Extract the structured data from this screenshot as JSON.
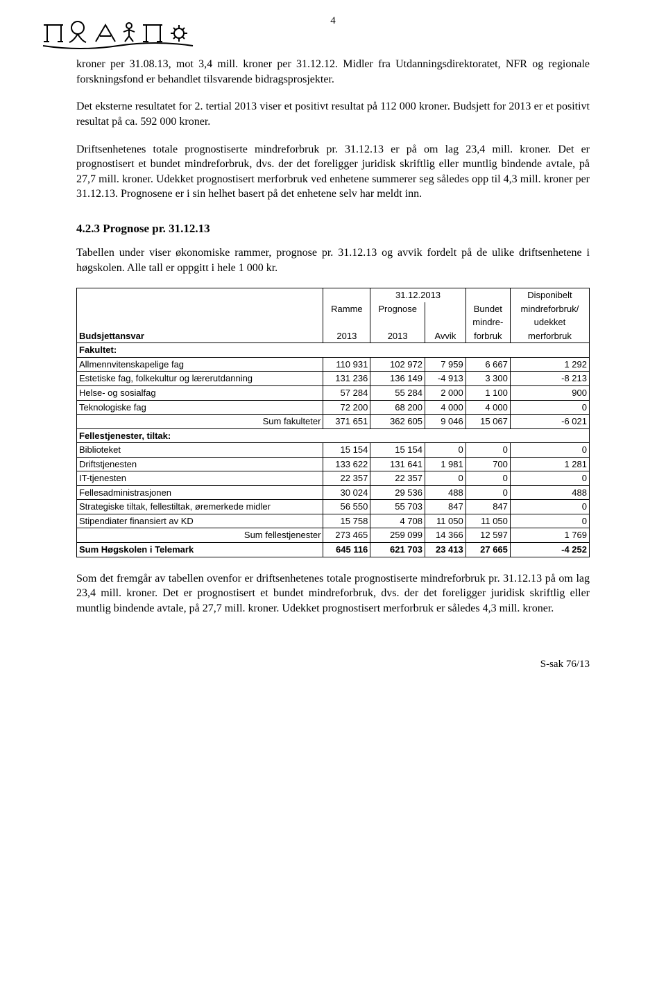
{
  "page_number": "4",
  "paragraphs": {
    "p1": "kroner per 31.08.13, mot 3,4 mill. kroner per 31.12.12. Midler fra Utdanningsdirektoratet, NFR og regionale forskningsfond er behandlet tilsvarende bidragsprosjekter.",
    "p2": "Det eksterne resultatet for 2. tertial 2013 viser et positivt resultat på 112 000 kroner. Budsjett for 2013 er et positivt resultat på ca. 592 000 kroner.",
    "p3": "Driftsenhetenes totale prognostiserte mindreforbruk pr. 31.12.13 er på om lag 23,4 mill. kroner. Det er prognostisert et bundet mindreforbruk, dvs. der det foreligger juridisk skriftlig eller muntlig bindende avtale, på 27,7 mill. kroner. Udekket prognostisert merforbruk ved enhetene summerer seg således opp til 4,3 mill. kroner per 31.12.13. Prognosene er i sin helhet basert på det enhetene selv har meldt inn."
  },
  "section_heading": "4.2.3   Prognose pr. 31.12.13",
  "section_intro": "Tabellen under viser økonomiske rammer, prognose pr. 31.12.13 og avvik fordelt på de ulike driftsenhetene i høgskolen. Alle tall er oppgitt i hele 1 000 kr.",
  "table": {
    "header": {
      "col1": "Budsjettansvar",
      "col2_l1": "Ramme",
      "col2_l2": "2013",
      "col_date": "31.12.2013",
      "col3_l1": "Prognose",
      "col3_l2": "2013",
      "col4": "Avvik",
      "col5_l1": "Bundet",
      "col5_l2": "mindre-",
      "col5_l3": "forbruk",
      "col6_l1": "Disponibelt",
      "col6_l2": "mindreforbruk/",
      "col6_l3": "udekket",
      "col6_l4": "merforbruk"
    },
    "section1_label": "Fakultet:",
    "rows1": [
      {
        "label": "Allmennvitenskapelige fag",
        "c": [
          "110 931",
          "102 972",
          "7 959",
          "6 667",
          "1 292"
        ]
      },
      {
        "label": "Estetiske fag, folkekultur og lærerutdanning",
        "c": [
          "131 236",
          "136 149",
          "-4 913",
          "3 300",
          "-8 213"
        ]
      },
      {
        "label": "Helse- og sosialfag",
        "c": [
          "57 284",
          "55 284",
          "2 000",
          "1 100",
          "900"
        ]
      },
      {
        "label": "Teknologiske fag",
        "c": [
          "72 200",
          "68 200",
          "4 000",
          "4 000",
          "0"
        ]
      }
    ],
    "sum1": {
      "label": "Sum fakulteter",
      "c": [
        "371 651",
        "362 605",
        "9 046",
        "15 067",
        "-6 021"
      ]
    },
    "section2_label": "Fellestjenester, tiltak:",
    "rows2": [
      {
        "label": "Biblioteket",
        "c": [
          "15 154",
          "15 154",
          "0",
          "0",
          "0"
        ]
      },
      {
        "label": "Driftstjenesten",
        "c": [
          "133 622",
          "131 641",
          "1 981",
          "700",
          "1 281"
        ]
      },
      {
        "label": "IT-tjenesten",
        "c": [
          "22 357",
          "22 357",
          "0",
          "0",
          "0"
        ]
      },
      {
        "label": "Fellesadministrasjonen",
        "c": [
          "30 024",
          "29 536",
          "488",
          "0",
          "488"
        ]
      },
      {
        "label": "Strategiske tiltak, fellestiltak, øremerkede midler",
        "c": [
          "56 550",
          "55 703",
          "847",
          "847",
          "0"
        ]
      },
      {
        "label": "Stipendiater finansiert av KD",
        "c": [
          "15 758",
          "4 708",
          "11 050",
          "11 050",
          "0"
        ]
      }
    ],
    "sum2": {
      "label": "Sum fellestjenester",
      "c": [
        "273 465",
        "259 099",
        "14 366",
        "12 597",
        "1 769"
      ]
    },
    "grand": {
      "label": "Sum Høgskolen i Telemark",
      "c": [
        "645 116",
        "621 703",
        "23 413",
        "27 665",
        "-4 252"
      ]
    }
  },
  "closing_paragraph": "Som det fremgår av tabellen ovenfor er driftsenhetenes totale prognostiserte mindreforbruk pr. 31.12.13 på om lag 23,4 mill. kroner. Det er prognostisert et bundet mindreforbruk, dvs. der det foreligger juridisk skriftlig eller muntlig bindende avtale, på 27,7 mill. kroner. Udekket prognostisert merforbruk er således 4,3 mill. kroner.",
  "footer_ref": "S-sak 76/13"
}
